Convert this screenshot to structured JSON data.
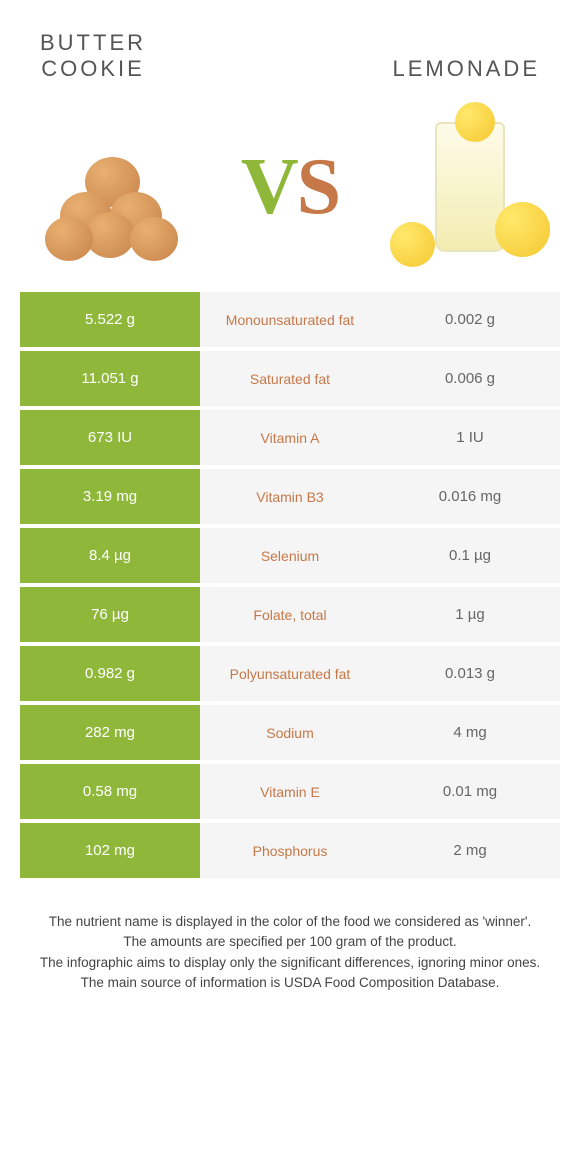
{
  "header": {
    "left_title_line1": "BUTTER",
    "left_title_line2": "COOKIE",
    "right_title": "LEMONADE"
  },
  "vs": {
    "v": "V",
    "s": "S"
  },
  "colors": {
    "winner_bg": "#8fb83b",
    "loser_bg": "#f5f5f5",
    "nutrient_text": "#c77848",
    "winner_text": "#ffffff",
    "loser_text": "#666666"
  },
  "rows": [
    {
      "left": "5.522 g",
      "mid": "Monounsaturated fat",
      "right": "0.002 g"
    },
    {
      "left": "11.051 g",
      "mid": "Saturated fat",
      "right": "0.006 g"
    },
    {
      "left": "673 IU",
      "mid": "Vitamin A",
      "right": "1 IU"
    },
    {
      "left": "3.19 mg",
      "mid": "Vitamin B3",
      "right": "0.016 mg"
    },
    {
      "left": "8.4 µg",
      "mid": "Selenium",
      "right": "0.1 µg"
    },
    {
      "left": "76 µg",
      "mid": "Folate, total",
      "right": "1 µg"
    },
    {
      "left": "0.982 g",
      "mid": "Polyunsaturated fat",
      "right": "0.013 g"
    },
    {
      "left": "282 mg",
      "mid": "Sodium",
      "right": "4 mg"
    },
    {
      "left": "0.58 mg",
      "mid": "Vitamin E",
      "right": "0.01 mg"
    },
    {
      "left": "102 mg",
      "mid": "Phosphorus",
      "right": "2 mg"
    }
  ],
  "footer": {
    "line1": "The nutrient name is displayed in the color of the food we considered as 'winner'.",
    "line2": "The amounts are specified per 100 gram of the product.",
    "line3": "The infographic aims to display only the significant differences, ignoring minor ones.",
    "line4": "The main source of information is USDA Food Composition Database."
  }
}
